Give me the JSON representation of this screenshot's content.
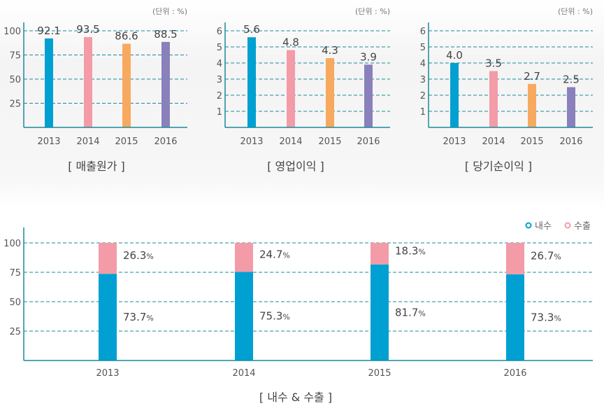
{
  "unit_label": "(단위 : %)",
  "colors": {
    "blue": "#00a0d2",
    "pink": "#f39ba7",
    "orange": "#f7a960",
    "purple": "#8a80bb",
    "axis": "#1a8a9a",
    "text": "#555555"
  },
  "chart_data": [
    {
      "type": "bar",
      "title": "[ 매출원가 ]",
      "categories": [
        "2013",
        "2014",
        "2015",
        "2016"
      ],
      "values": [
        92.1,
        93.5,
        86.6,
        88.5
      ],
      "yticks": [
        25,
        50,
        75,
        100
      ],
      "ylim": [
        0,
        100
      ],
      "unit": "(단위 : %)",
      "grid": true
    },
    {
      "type": "bar",
      "title": "[ 영업이익 ]",
      "categories": [
        "2013",
        "2014",
        "2015",
        "2016"
      ],
      "values": [
        5.6,
        4.8,
        4.3,
        3.9
      ],
      "yticks": [
        1,
        2,
        3,
        4,
        5,
        6
      ],
      "ylim": [
        0,
        6
      ],
      "unit": "(단위 : %)",
      "grid": true
    },
    {
      "type": "bar",
      "title": "[ 당기순이익 ]",
      "categories": [
        "2013",
        "2014",
        "2015",
        "2016"
      ],
      "values": [
        4.0,
        3.5,
        2.7,
        2.5
      ],
      "value_labels": [
        "4.0",
        "3.5",
        "2.7",
        "2.5"
      ],
      "yticks": [
        1,
        2,
        3,
        4,
        5,
        6
      ],
      "ylim": [
        0,
        6
      ],
      "unit": "(단위 : %)",
      "grid": true
    },
    {
      "type": "bar",
      "stacked": true,
      "title": "[ 내수 & 수출 ]",
      "categories": [
        "2013",
        "2014",
        "2015",
        "2016"
      ],
      "yticks": [
        25,
        50,
        75,
        100
      ],
      "ylim": [
        0,
        100
      ],
      "grid": true,
      "legend": "top-right",
      "series": [
        {
          "name": "내수",
          "values": [
            73.7,
            75.3,
            81.7,
            73.3
          ]
        },
        {
          "name": "수출",
          "values": [
            26.3,
            24.7,
            18.3,
            26.7
          ]
        }
      ]
    }
  ]
}
